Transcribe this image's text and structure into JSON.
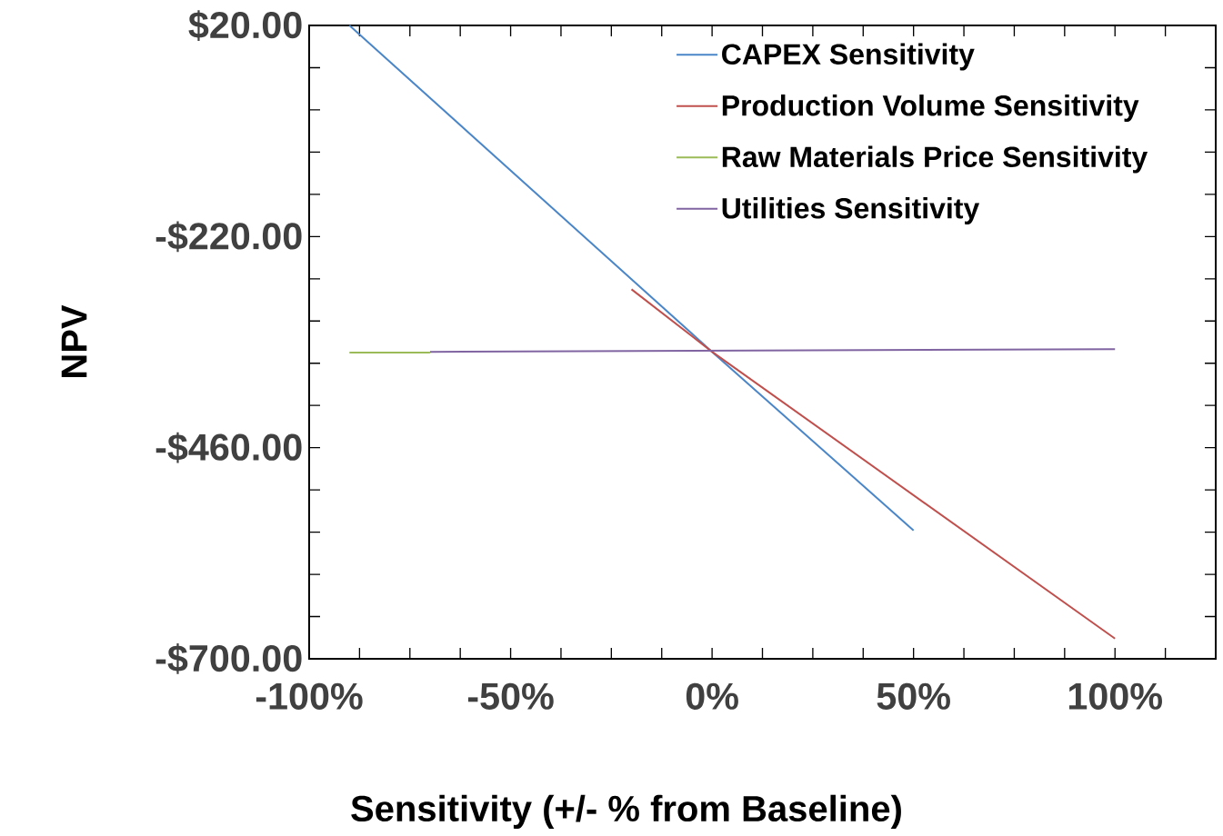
{
  "chart_data": {
    "type": "line",
    "xlabel": "Sensitivity (+/- % from Baseline)",
    "ylabel": "NPV",
    "xlim": [
      -100,
      125
    ],
    "ylim": [
      -700,
      20
    ],
    "xticks": [
      {
        "value": -100,
        "label": "-100%"
      },
      {
        "value": -87.5,
        "label": null
      },
      {
        "value": -75,
        "label": null
      },
      {
        "value": -62.5,
        "label": null
      },
      {
        "value": -50,
        "label": "-50%"
      },
      {
        "value": -37.5,
        "label": null
      },
      {
        "value": -25,
        "label": null
      },
      {
        "value": -12.5,
        "label": null
      },
      {
        "value": 0,
        "label": "0%"
      },
      {
        "value": 12.5,
        "label": null
      },
      {
        "value": 25,
        "label": null
      },
      {
        "value": 37.5,
        "label": null
      },
      {
        "value": 50,
        "label": "50%"
      },
      {
        "value": 62.5,
        "label": null
      },
      {
        "value": 75,
        "label": null
      },
      {
        "value": 87.5,
        "label": null
      },
      {
        "value": 100,
        "label": "100%"
      },
      {
        "value": 112.5,
        "label": null
      },
      {
        "value": 125,
        "label": null
      }
    ],
    "yticks": [
      {
        "value": 20,
        "label": "$20.00"
      },
      {
        "value": -28,
        "label": null
      },
      {
        "value": -76,
        "label": null
      },
      {
        "value": -124,
        "label": null
      },
      {
        "value": -172,
        "label": null
      },
      {
        "value": -220,
        "label": "-$220.00"
      },
      {
        "value": -268,
        "label": null
      },
      {
        "value": -316,
        "label": null
      },
      {
        "value": -364,
        "label": null
      },
      {
        "value": -412,
        "label": null
      },
      {
        "value": -460,
        "label": "-$460.00"
      },
      {
        "value": -508,
        "label": null
      },
      {
        "value": -556,
        "label": null
      },
      {
        "value": -604,
        "label": null
      },
      {
        "value": -652,
        "label": null
      },
      {
        "value": -700,
        "label": "-$700.00"
      }
    ],
    "grid": false,
    "legend": "top right",
    "marker": "none",
    "line_style": "solid",
    "series": [
      {
        "name": "CAPEX Sensitivity",
        "color": "#4a86c8",
        "x": [
          -90,
          0,
          50
        ],
        "values": [
          20,
          -351,
          -554
        ]
      },
      {
        "name": "Production Volume Sensitivity",
        "color": "#c0504d",
        "x": [
          -20,
          0,
          100
        ],
        "values": [
          -280,
          -351,
          -677
        ]
      },
      {
        "name": "Raw Materials Price Sensitivity",
        "color": "#9bbb59",
        "x": [
          -90,
          -70
        ],
        "values": [
          -352,
          -352
        ]
      },
      {
        "name": "Utilities Sensitivity",
        "color": "#8064a2",
        "x": [
          -70,
          100
        ],
        "values": [
          -351,
          -348
        ]
      }
    ]
  }
}
